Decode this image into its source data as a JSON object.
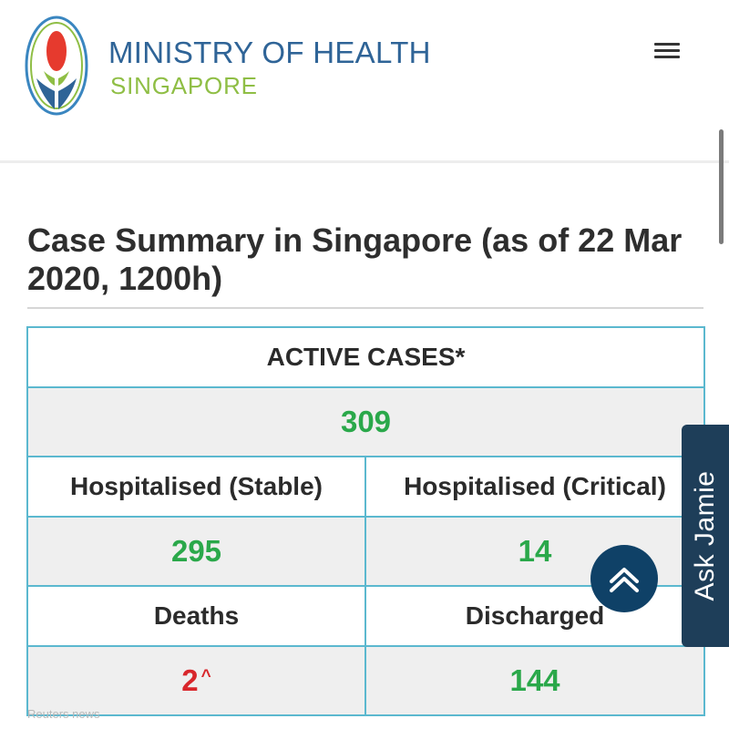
{
  "header": {
    "org_name": "MINISTRY OF HEALTH",
    "org_country": "SINGAPORE",
    "logo_icon": "moh-logo-icon",
    "menu_icon": "hamburger-menu-icon"
  },
  "page": {
    "title": "Case Summary in Singapore (as of 22 Mar 2020, 1200h)"
  },
  "case_table": {
    "active_label": "ACTIVE CASES*",
    "active_value": "309",
    "hospitalised_stable_label": "Hospitalised (Stable)",
    "hospitalised_critical_label": "Hospitalised (Critical)",
    "hospitalised_stable_value": "295",
    "hospitalised_critical_value": "14",
    "deaths_label": "Deaths",
    "discharged_label": "Discharged",
    "deaths_value": "2",
    "deaths_marker": "^",
    "discharged_value": "144"
  },
  "widgets": {
    "ask_jamie_label": "Ask Jamie",
    "back_to_top_icon": "double-chevron-up-icon"
  },
  "watermark": "Reuters news",
  "colors": {
    "brand_blue": "#2f6497",
    "brand_green": "#8fbe45",
    "value_green": "#2aa84a",
    "value_red": "#d8262b",
    "table_border": "#5bb8cf",
    "ask_tab_bg": "#1e3e59"
  }
}
